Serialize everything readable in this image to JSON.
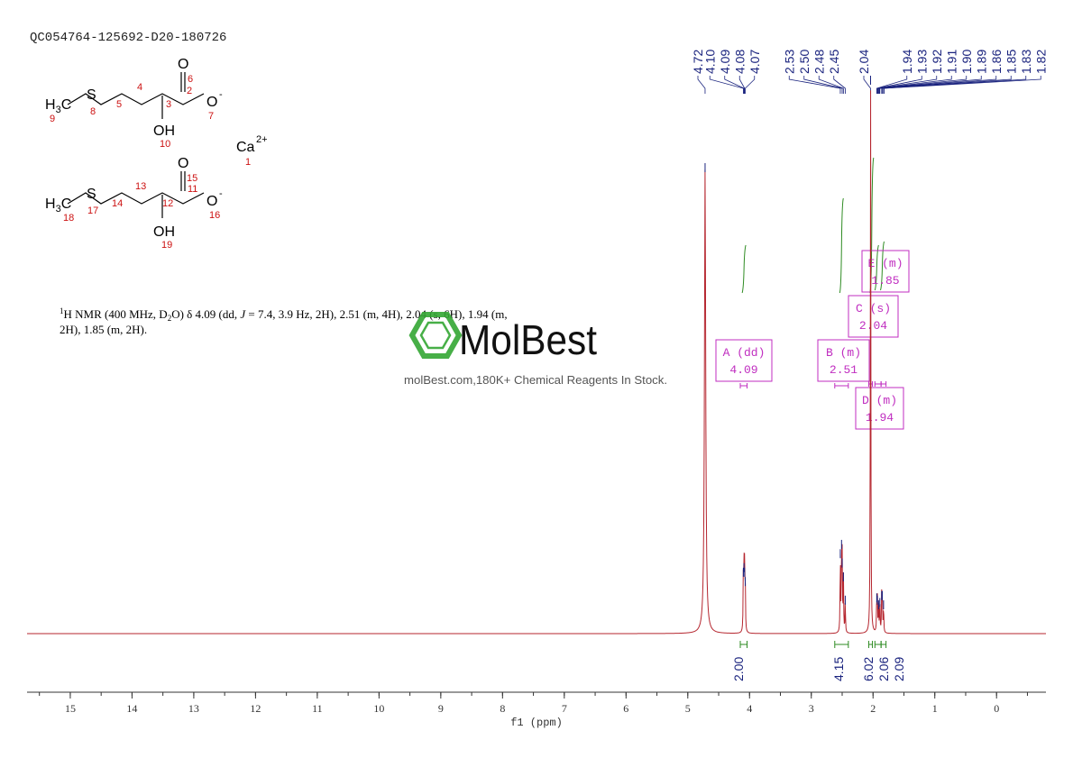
{
  "sample_id": "QC054764-125692-D20-180726",
  "nmr_text": {
    "line1_pre": "H NMR (400 MHz, D",
    "line1_mid": "O) δ 4.09 (dd, ",
    "line1_j": "J",
    "line1_post": " = 7.4, 3.9 Hz, 2H), 2.51 (m, 4H), 2.04 (s, 6H), 1.94 (m,",
    "line2": "2H), 1.85 (m, 2H).",
    "sup": "1",
    "sub": "2"
  },
  "watermark": {
    "brand": "MolBest",
    "tagline": "molBest.com,180K+ Chemical Reagents In Stock."
  },
  "structure": {
    "ca": "Ca",
    "ca_charge": "2+",
    "ca_num": "1",
    "mol1": {
      "h3c": "H",
      "h3c_sub": "3",
      "c": "C",
      "s": "S",
      "oh": "OH",
      "o_top": "O",
      "o_minus": "O",
      "minus": "-",
      "nums": {
        "n9": "9",
        "n8": "8",
        "n5": "5",
        "n4": "4",
        "n3": "3",
        "n2": "2",
        "n6": "6",
        "n7": "7",
        "n10": "10"
      }
    },
    "mol2": {
      "h3c": "H",
      "h3c_sub": "3",
      "c": "C",
      "s": "S",
      "oh": "OH",
      "o_top": "O",
      "o_minus": "O",
      "minus": "-",
      "nums": {
        "n18": "18",
        "n17": "17",
        "n14": "14",
        "n13": "13",
        "n12": "12",
        "n11": "11",
        "n15": "15",
        "n16": "16",
        "n19": "19"
      }
    }
  },
  "chart_data": {
    "type": "line",
    "title": "",
    "xlabel": "f1 (ppm)",
    "ylabel": "",
    "xlim": [
      15.7,
      -0.8
    ],
    "xticks": [
      "15",
      "14",
      "13",
      "12",
      "11",
      "10",
      "9",
      "8",
      "7",
      "6",
      "5",
      "4",
      "3",
      "2",
      "1",
      "0"
    ],
    "xtick_values": [
      15,
      14,
      13,
      12,
      11,
      10,
      9,
      8,
      7,
      6,
      5,
      4,
      3,
      2,
      1,
      0
    ],
    "grid": false,
    "peak_labels": [
      "4.72",
      "4.10",
      "4.09",
      "4.08",
      "4.07",
      "2.53",
      "2.50",
      "2.48",
      "2.45",
      "2.04",
      "1.94",
      "1.93",
      "1.92",
      "1.91",
      "1.90",
      "1.89",
      "1.86",
      "1.85",
      "1.83",
      "1.82"
    ],
    "peaks": [
      {
        "ppm": 4.72,
        "height": 1.0
      },
      {
        "ppm": 4.1,
        "height": 0.13
      },
      {
        "ppm": 4.09,
        "height": 0.14
      },
      {
        "ppm": 4.08,
        "height": 0.13
      },
      {
        "ppm": 4.07,
        "height": 0.11
      },
      {
        "ppm": 2.53,
        "height": 0.17
      },
      {
        "ppm": 2.51,
        "height": 0.19
      },
      {
        "ppm": 2.5,
        "height": 0.15
      },
      {
        "ppm": 2.48,
        "height": 0.12
      },
      {
        "ppm": 2.45,
        "height": 0.07
      },
      {
        "ppm": 2.04,
        "height": 1.19
      },
      {
        "ppm": 1.94,
        "height": 0.075
      },
      {
        "ppm": 1.93,
        "height": 0.07
      },
      {
        "ppm": 1.91,
        "height": 0.06
      },
      {
        "ppm": 1.89,
        "height": 0.065
      },
      {
        "ppm": 1.86,
        "height": 0.08
      },
      {
        "ppm": 1.85,
        "height": 0.08
      },
      {
        "ppm": 1.83,
        "height": 0.06
      }
    ],
    "multiplets": [
      {
        "label": "A (dd)",
        "shift": "4.09",
        "ppm": 4.09,
        "range": [
          4.15,
          4.04
        ]
      },
      {
        "label": "B (m)",
        "shift": "2.51",
        "ppm": 2.51,
        "range": [
          2.62,
          2.4
        ]
      },
      {
        "label": "C (s)",
        "shift": "2.04",
        "ppm": 2.04,
        "range": [
          2.07,
          2.01
        ]
      },
      {
        "label": "D (m)",
        "shift": "1.94",
        "ppm": 1.94,
        "range": [
          1.97,
          1.87
        ]
      },
      {
        "label": "E (m)",
        "shift": "1.85",
        "ppm": 1.85,
        "range": [
          1.87,
          1.79
        ]
      }
    ],
    "integrals": [
      {
        "value": "2.00",
        "ppm": 4.09,
        "range": [
          4.15,
          4.04
        ]
      },
      {
        "value": "4.15",
        "ppm": 2.51,
        "range": [
          2.62,
          2.4
        ]
      },
      {
        "value": "6.02",
        "ppm": 2.04,
        "range": [
          2.07,
          2.01
        ]
      },
      {
        "value": "2.06",
        "ppm": 1.94,
        "range": [
          1.97,
          1.87
        ]
      },
      {
        "value": "2.09",
        "ppm": 1.85,
        "range": [
          1.87,
          1.79
        ]
      }
    ],
    "colors": {
      "spectrum": "#b5262f",
      "peak_label": "#1a237e",
      "integral_curve": "#2e8b22",
      "multiplet_box": "#c02ec0",
      "axis": "#333333",
      "watermark": "#33a633"
    }
  }
}
